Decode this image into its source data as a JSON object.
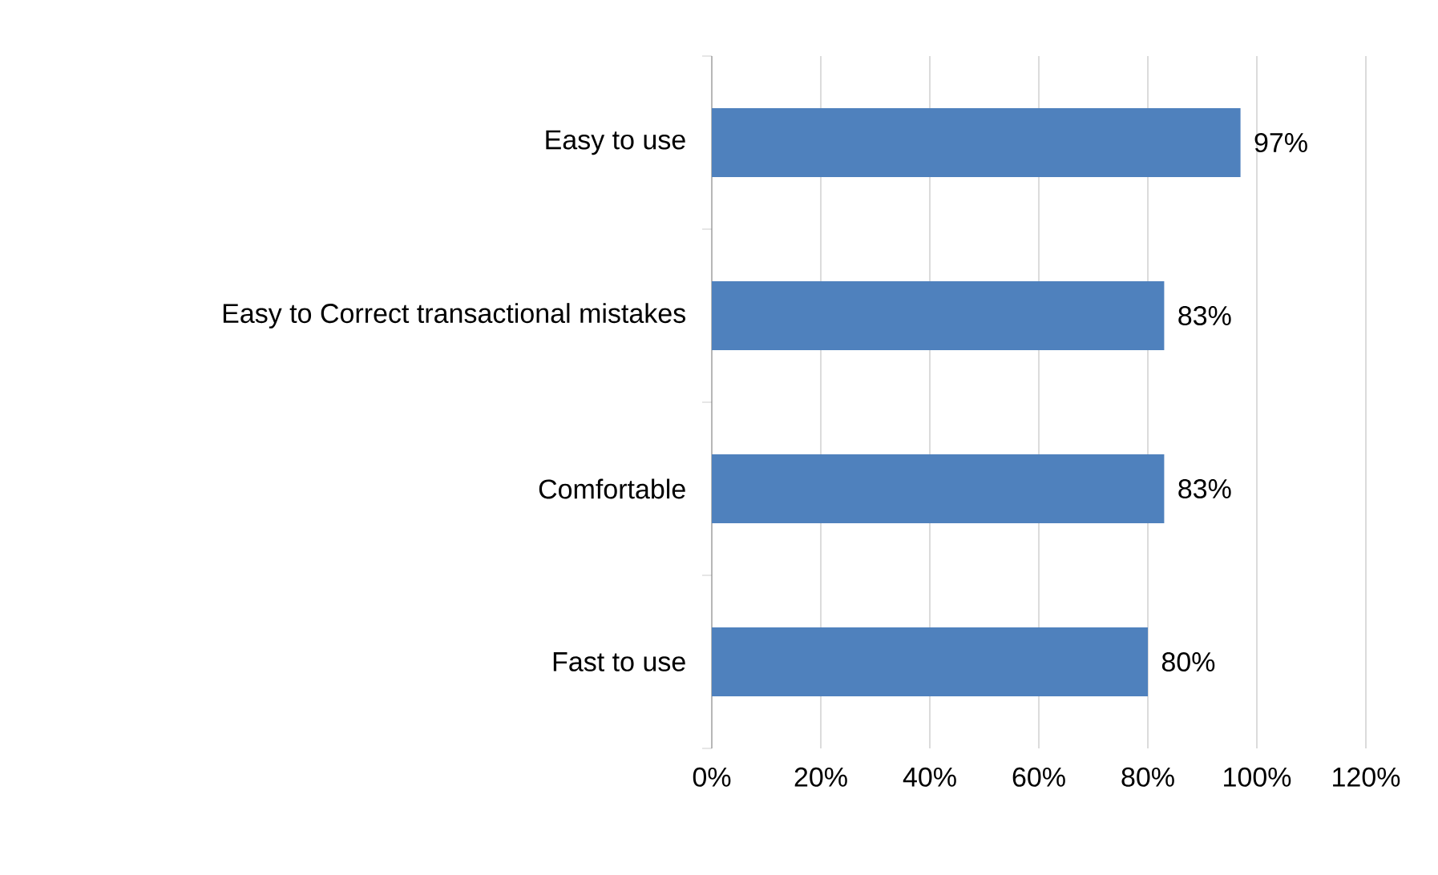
{
  "chart_data": {
    "type": "bar",
    "orientation": "horizontal",
    "categories": [
      "Easy to use",
      "Easy to Correct transactional mistakes",
      "Comfortable",
      "Fast to use"
    ],
    "values": [
      97,
      83,
      83,
      80
    ],
    "value_labels": [
      "97%",
      "83%",
      "83%",
      "80%"
    ],
    "color": "#4f81bd",
    "xlim": [
      0,
      120
    ],
    "xticks": [
      {
        "value": 0,
        "label": "0%"
      },
      {
        "value": 20,
        "label": "20%"
      },
      {
        "value": 40,
        "label": "40%"
      },
      {
        "value": 60,
        "label": "60%"
      },
      {
        "value": 80,
        "label": "80%"
      },
      {
        "value": 100,
        "label": "100%"
      },
      {
        "value": 120,
        "label": "120%"
      }
    ],
    "grid": "x"
  }
}
